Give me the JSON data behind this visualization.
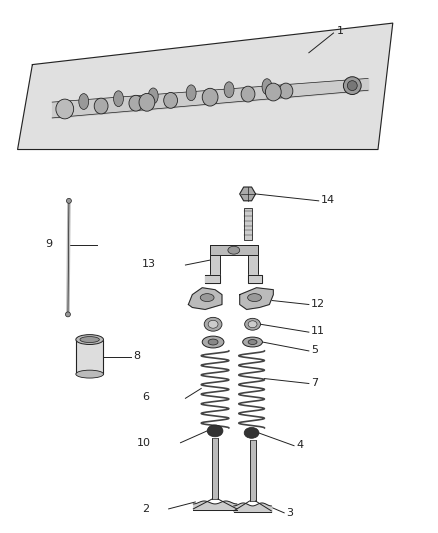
{
  "background_color": "#ffffff",
  "fig_width": 4.38,
  "fig_height": 5.33,
  "dpi": 100,
  "line_color": "#222222",
  "part_fill": "#cccccc",
  "part_dark": "#888888",
  "part_darker": "#555555"
}
